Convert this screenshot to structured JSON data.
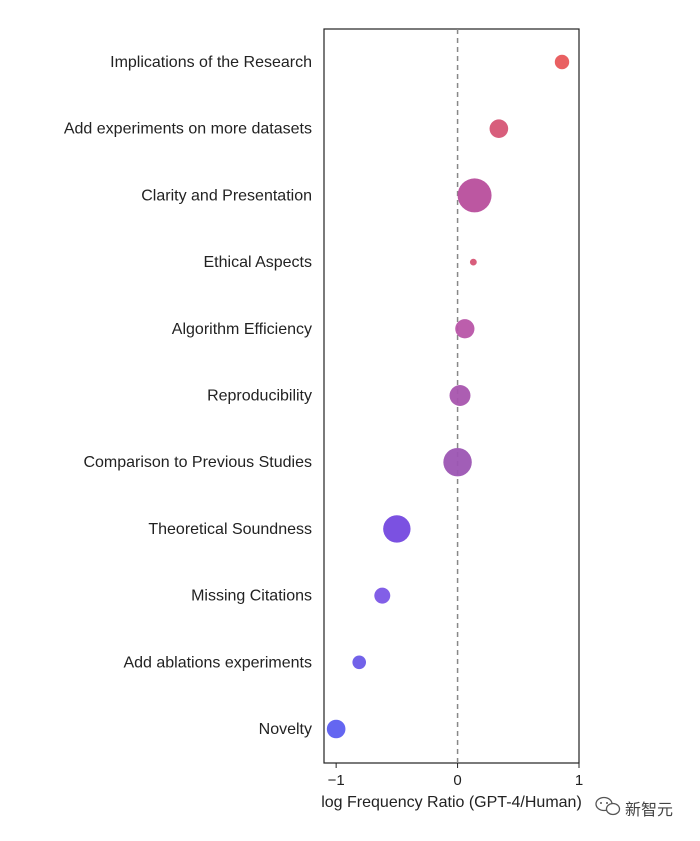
{
  "chart_data": {
    "type": "scatter",
    "title": "",
    "xlabel": "log Frequency Ratio (GPT-4/Human)",
    "ylabel": "",
    "xlim": [
      -1.1,
      1.0
    ],
    "xticks": [
      -1,
      0,
      1
    ],
    "xtick_labels": [
      "−1",
      "0",
      "1"
    ],
    "reference_line_x": 0,
    "grid": false,
    "categories": [
      "Implications of the Research",
      "Add experiments on more datasets",
      "Clarity and Presentation",
      "Ethical Aspects",
      "Algorithm Efficiency",
      "Reproducibility",
      "Comparison to Previous Studies",
      "Theoretical Soundness",
      "Missing Citations",
      "Add ablations experiments",
      "Novelty"
    ],
    "x": [
      0.86,
      0.34,
      0.14,
      0.13,
      0.06,
      0.02,
      0.0,
      -0.5,
      -0.62,
      -0.81,
      -1.0
    ],
    "size": [
      0.18,
      0.3,
      1.0,
      0.04,
      0.32,
      0.38,
      0.7,
      0.65,
      0.22,
      0.16,
      0.3
    ],
    "colors": [
      "#e8575a",
      "#d65575",
      "#b84e9c",
      "#d65575",
      "#b855a8",
      "#a855ae",
      "#9c55b3",
      "#7448df",
      "#7b56e6",
      "#6a5ae8",
      "#5c5ef0"
    ]
  },
  "watermark": {
    "text": "新智元",
    "icon": "wechat-icon"
  }
}
